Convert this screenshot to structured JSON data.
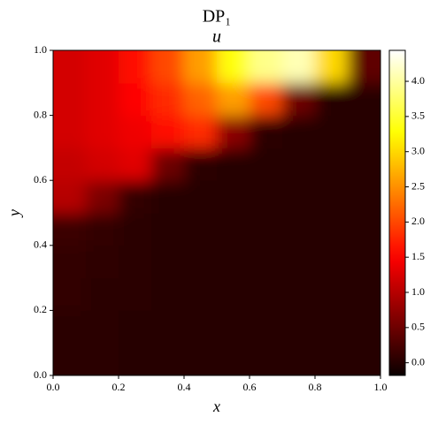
{
  "chart_data": {
    "type": "heatmap",
    "title": "DP₁",
    "subtitle": "u",
    "xlabel": "x",
    "ylabel": "y",
    "colormap": "hot",
    "xlim": [
      0,
      1
    ],
    "ylim": [
      0,
      1
    ],
    "xticks": [
      {
        "value": 0,
        "label": "0.0"
      },
      {
        "value": 0.2,
        "label": "0.2"
      },
      {
        "value": 0.4,
        "label": "0.4"
      },
      {
        "value": 0.6,
        "label": "0.6"
      },
      {
        "value": 0.8,
        "label": "0.8"
      },
      {
        "value": 1,
        "label": "1.0"
      }
    ],
    "yticks": [
      {
        "value": 0,
        "label": "0.0"
      },
      {
        "value": 0.2,
        "label": "0.2"
      },
      {
        "value": 0.4,
        "label": "0.4"
      },
      {
        "value": 0.6,
        "label": "0.6"
      },
      {
        "value": 0.8,
        "label": "0.8"
      },
      {
        "value": 1,
        "label": "1.0"
      }
    ],
    "clim": [
      -0.18,
      4.44
    ],
    "cticks": [
      {
        "value": 0,
        "label": "0.0"
      },
      {
        "value": 0.5,
        "label": "0.5"
      },
      {
        "value": 1,
        "label": "1.0"
      },
      {
        "value": 1.5,
        "label": "1.5"
      },
      {
        "value": 2,
        "label": "2.0"
      },
      {
        "value": 2.5,
        "label": "2.5"
      },
      {
        "value": 3,
        "label": "3.0"
      },
      {
        "value": 3.5,
        "label": "3.5"
      },
      {
        "value": 4,
        "label": "4.0"
      }
    ],
    "z": [
      [
        0.05,
        0.03,
        0.02,
        0.02,
        0.02,
        0.02,
        0.02,
        0.02,
        0.02,
        0.02
      ],
      [
        0.05,
        0.03,
        0.02,
        0.02,
        0.02,
        0.02,
        0.02,
        0.02,
        0.02,
        0.02
      ],
      [
        0.08,
        0.05,
        0.03,
        0.02,
        0.02,
        0.02,
        0.02,
        0.02,
        0.02,
        0.02
      ],
      [
        0.1,
        0.06,
        0.03,
        0.02,
        0.02,
        0.02,
        0.02,
        0.02,
        0.02,
        0.02
      ],
      [
        0.15,
        0.08,
        0.04,
        0.02,
        0.02,
        0.02,
        0.02,
        0.02,
        0.02,
        0.02
      ],
      [
        1.0,
        0.6,
        0.1,
        0.02,
        0.02,
        0.02,
        0.02,
        0.02,
        0.02,
        0.02
      ],
      [
        1.1,
        1.2,
        1.3,
        0.5,
        0.05,
        0.02,
        0.02,
        0.02,
        0.02,
        0.02
      ],
      [
        1.2,
        1.3,
        1.4,
        1.6,
        1.8,
        0.7,
        0.05,
        0.02,
        0.02,
        0.02
      ],
      [
        1.2,
        1.3,
        1.5,
        1.8,
        2.2,
        2.6,
        2.0,
        0.5,
        0.02,
        0.02
      ],
      [
        1.2,
        1.3,
        1.6,
        2.0,
        2.6,
        3.3,
        3.9,
        4.1,
        3.0,
        0.4
      ]
    ]
  }
}
